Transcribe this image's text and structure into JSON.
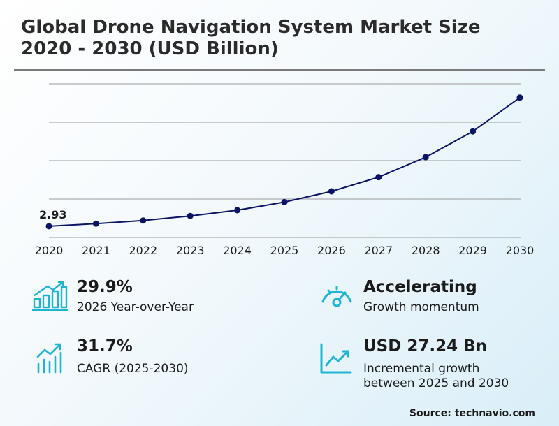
{
  "header": {
    "title_line1": "Global Drone Navigation System Market Size",
    "title_line2": "2020 - 2030 (USD Billion)"
  },
  "chart_data": {
    "type": "line",
    "title": "Global Drone Navigation System Market Size 2020 - 2030 (USD Billion)",
    "x": [
      "2020",
      "2021",
      "2022",
      "2023",
      "2024",
      "2025",
      "2026",
      "2027",
      "2028",
      "2029",
      "2030"
    ],
    "series": [
      {
        "values": [
          2.93,
          3.6,
          4.4,
          5.6,
          7.1,
          9.2,
          12.0,
          15.7,
          20.9,
          27.6,
          36.4
        ]
      }
    ],
    "labeled_points": [
      {
        "x": "2020",
        "label": "2.93"
      }
    ],
    "ylim": [
      0,
      40
    ],
    "grid": true,
    "line_color": "#0b1464"
  },
  "stats": {
    "yoy": {
      "value": "29.9%",
      "label": "2026 Year-over-Year",
      "icon": "bar-chart-growth-icon"
    },
    "momentum": {
      "value": "Accelerating",
      "label": "Growth momentum",
      "icon": "speedometer-icon"
    },
    "cagr": {
      "value": "31.7%",
      "label": "CAGR (2025-2030)",
      "icon": "trend-chart-icon"
    },
    "incremental": {
      "value": "USD 27.24 Bn",
      "label_line1": "Incremental growth",
      "label_line2": "between 2025 and 2030",
      "icon": "line-graph-icon"
    }
  },
  "footer": {
    "source": "Source: technavio.com"
  },
  "colors": {
    "accent": "#1fb3d4",
    "line": "#0b1464",
    "text": "#1b1b1b"
  }
}
